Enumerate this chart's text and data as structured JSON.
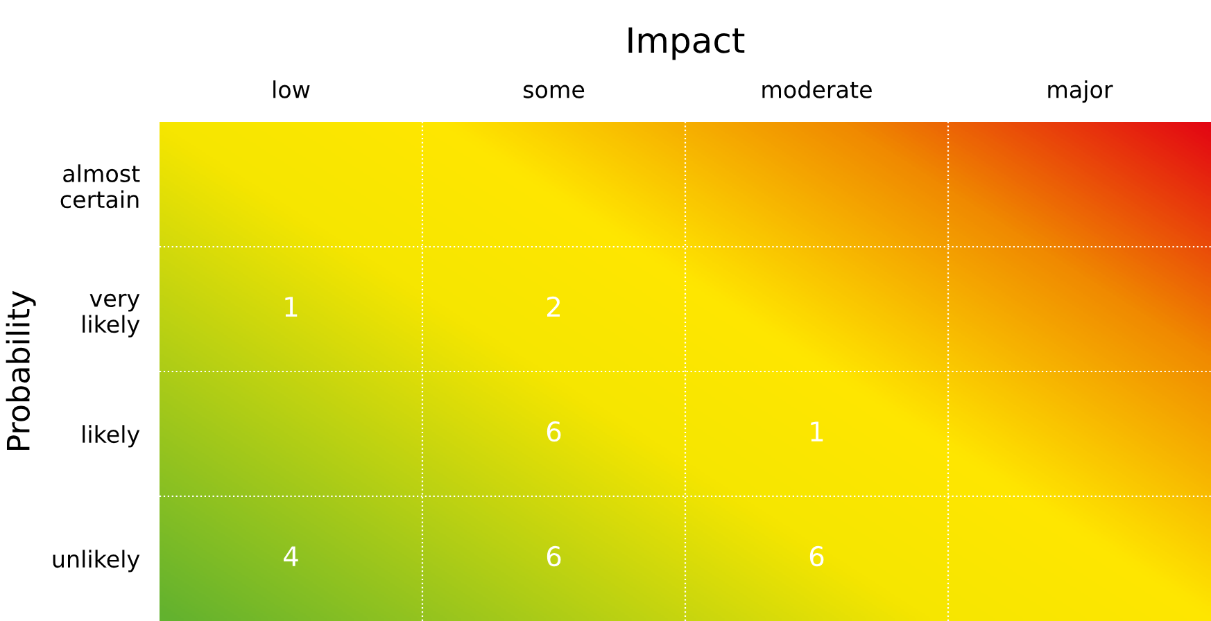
{
  "chart_data": {
    "type": "heatmap",
    "title": "Impact",
    "ylabel": "Probability",
    "categories": [
      "low",
      "some",
      "moderate",
      "major"
    ],
    "y_categories": [
      "almost\ncertain",
      "very\nlikely",
      "likely",
      "unlikely"
    ],
    "cells": [
      [
        null,
        null,
        null,
        null
      ],
      [
        1,
        2,
        null,
        null
      ],
      [
        null,
        6,
        1,
        null
      ],
      [
        4,
        6,
        6,
        null
      ]
    ],
    "data_labels": true,
    "grid": true
  }
}
